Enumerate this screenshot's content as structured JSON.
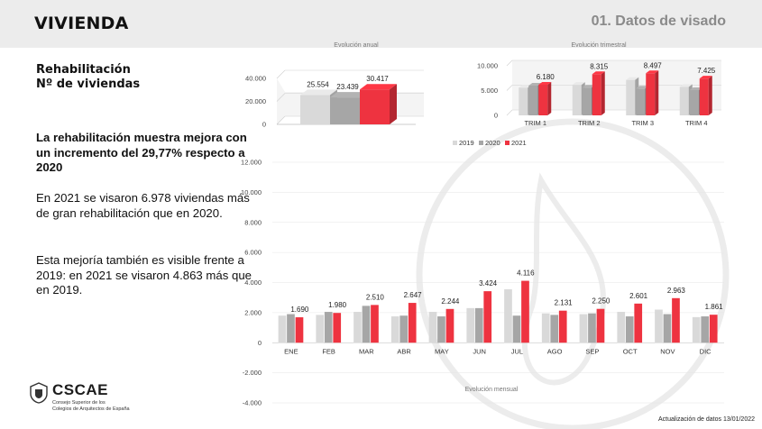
{
  "header": {
    "title": "VIVIENDA",
    "section": "01. Datos de visado"
  },
  "subtitle_line1": "Rehabilitación",
  "subtitle_line2": "Nº de viviendas",
  "highlight": "La rehabilitación muestra mejora con un incremento del 29,77% respecto a 2020",
  "paragraph2": "En 2021 se visaron 6.978 viviendas más de gran rehabilitación que en 2020.",
  "paragraph3": "Esta mejoría también es visible frente a 2019: en 2021 se visaron 4.863 más que en 2019.",
  "footer": "Actualización de datos 13/01/2022",
  "logo": {
    "name": "CSCAE",
    "sub1": "Consejo Superior de los",
    "sub2": "Colegios de Arquitectos de España"
  },
  "colors": {
    "y2019": "#d9d9d9",
    "y2020": "#a6a6a6",
    "y2021": "#ee3340"
  },
  "chart_data": [
    {
      "type": "bar",
      "title": "Evolución anual",
      "categories": [
        "2019",
        "2020",
        "2021"
      ],
      "values": [
        25554,
        23439,
        30417
      ],
      "value_labels": [
        "25.554",
        "23.439",
        "30.417"
      ],
      "yticks": [
        "0",
        "20.000",
        "40.000"
      ],
      "ylim": [
        0,
        40000
      ]
    },
    {
      "type": "bar",
      "title": "Evolución trimestral",
      "categories": [
        "TRIM 1",
        "TRIM 2",
        "TRIM 3",
        "TRIM 4"
      ],
      "series": [
        {
          "name": "2019",
          "values": [
            5600,
            6150,
            7150,
            5750
          ]
        },
        {
          "name": "2020",
          "values": [
            6000,
            5600,
            5400,
            5100
          ]
        },
        {
          "name": "2021",
          "values": [
            6180,
            8315,
            8497,
            7425
          ]
        }
      ],
      "value_labels": [
        "6.180",
        "8.315",
        "8.497",
        "7.425"
      ],
      "yticks": [
        "0",
        "5.000",
        "10.000"
      ],
      "ylim": [
        0,
        10000
      ],
      "legend": [
        "2019",
        "2020",
        "2021"
      ]
    },
    {
      "type": "bar",
      "title": "Evolución mensual",
      "categories": [
        "ENE",
        "FEB",
        "MAR",
        "ABR",
        "MAY",
        "JUN",
        "JUL",
        "AGO",
        "SEP",
        "OCT",
        "NOV",
        "DIC"
      ],
      "series": [
        {
          "name": "2019",
          "values": [
            1800,
            1850,
            2050,
            1750,
            2050,
            2300,
            3550,
            1950,
            1900,
            2050,
            2200,
            1700
          ]
        },
        {
          "name": "2020",
          "values": [
            1900,
            2050,
            2450,
            1800,
            1750,
            2300,
            1800,
            1850,
            1950,
            1750,
            1900,
            1750
          ]
        },
        {
          "name": "2021",
          "values": [
            1690,
            1980,
            2510,
            2647,
            2244,
            3424,
            4116,
            2131,
            2250,
            2601,
            2963,
            1861
          ]
        }
      ],
      "value_labels": [
        "1.690",
        "1.980",
        "2.510",
        "2.647",
        "2.244",
        "3.424",
        "4.116",
        "2.131",
        "2.250",
        "2.601",
        "2.963",
        "1.861"
      ],
      "yticks": [
        "-4.000",
        "-2.000",
        "0",
        "2.000",
        "4.000",
        "6.000",
        "8.000",
        "10.000",
        "12.000"
      ],
      "ylim": [
        -4000,
        12000
      ]
    }
  ]
}
